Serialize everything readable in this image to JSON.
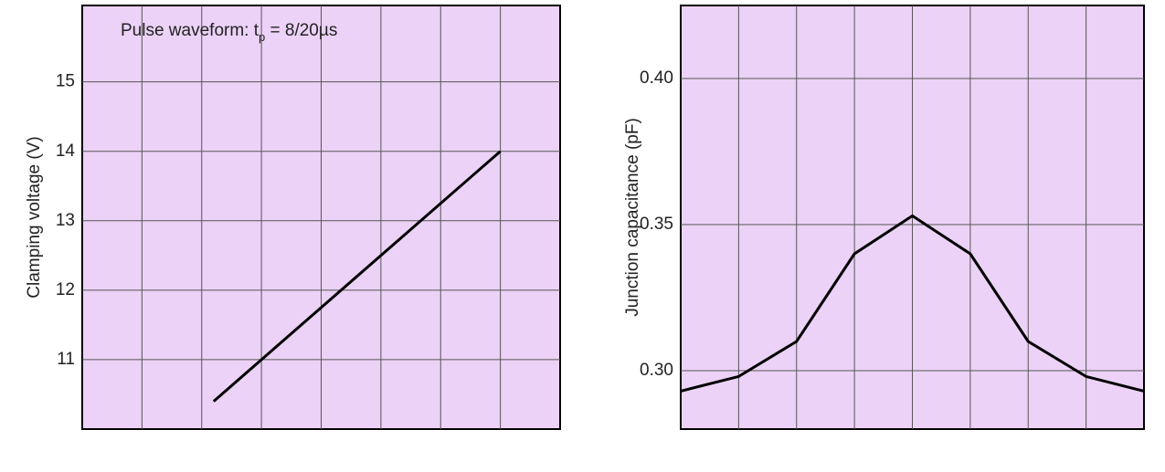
{
  "chart_data": [
    {
      "type": "line",
      "ylabel": "Clamping voltage (V)",
      "annotation": {
        "text": "Pulse waveform: t",
        "sub": "p",
        "rest": " = 8/20µs"
      },
      "x": [
        2.2,
        7.0
      ],
      "values": [
        10.4,
        14.0
      ],
      "color": "#000000",
      "xlim": [
        0,
        8
      ],
      "ylim": [
        10,
        16.1
      ],
      "yticks": [
        11,
        12,
        13,
        14,
        15
      ],
      "grid": true
    },
    {
      "type": "line",
      "ylabel": "Junction capacitance (pF)",
      "x": [
        0,
        1,
        2,
        3,
        4,
        5,
        6,
        7,
        8
      ],
      "values": [
        0.293,
        0.298,
        0.31,
        0.34,
        0.353,
        0.34,
        0.31,
        0.298,
        0.293
      ],
      "color": "#000000",
      "xlim": [
        0,
        8
      ],
      "ylim": [
        0.28,
        0.425
      ],
      "yticks": [
        {
          "value": 0.3,
          "label": "0.30"
        },
        0.35,
        {
          "value": 0.4,
          "label": "0.40"
        }
      ],
      "grid": true
    }
  ]
}
